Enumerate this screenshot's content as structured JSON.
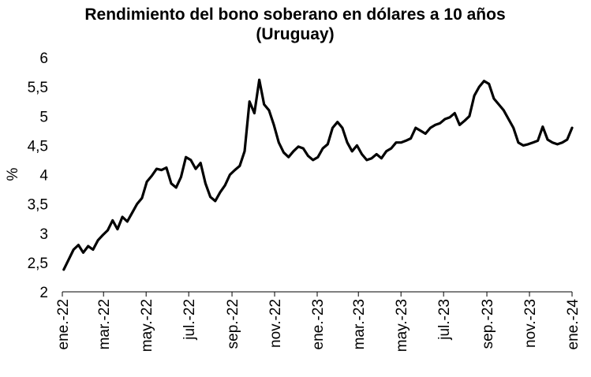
{
  "chart_data": {
    "type": "line",
    "title": "Rendimiento del bono soberano en dólares a 10 años",
    "subtitle": "(Uruguay)",
    "xlabel": "",
    "ylabel": "%",
    "ylim": [
      2,
      6
    ],
    "y_ticks": [
      "2",
      "2,5",
      "3",
      "3,5",
      "4",
      "4,5",
      "5",
      "5,5",
      "6"
    ],
    "y_tick_values": [
      2,
      2.5,
      3,
      3.5,
      4,
      4.5,
      5,
      5.5,
      6
    ],
    "x_range": [
      "2022-01-01",
      "2024-01-01"
    ],
    "x_ticks": [
      {
        "date": "2022-01-01",
        "label": "ene.-22"
      },
      {
        "date": "2022-03-01",
        "label": "mar.-22"
      },
      {
        "date": "2022-05-01",
        "label": "may.-22"
      },
      {
        "date": "2022-07-01",
        "label": "jul.-22"
      },
      {
        "date": "2022-09-01",
        "label": "sep.-22"
      },
      {
        "date": "2022-11-01",
        "label": "nov.-22"
      },
      {
        "date": "2023-01-01",
        "label": "ene.-23"
      },
      {
        "date": "2023-03-01",
        "label": "mar.-23"
      },
      {
        "date": "2023-05-01",
        "label": "may.-23"
      },
      {
        "date": "2023-07-01",
        "label": "jul.-23"
      },
      {
        "date": "2023-09-01",
        "label": "sep.-23"
      },
      {
        "date": "2023-11-01",
        "label": "nov.-23"
      },
      {
        "date": "2024-01-01",
        "label": "ene.-24"
      }
    ],
    "grid": false,
    "legend": "none",
    "line_color": "#000000",
    "series": [
      {
        "x": [
          "2022-01-03",
          "2022-01-10",
          "2022-01-17",
          "2022-01-24",
          "2022-01-31",
          "2022-02-07",
          "2022-02-14",
          "2022-02-21",
          "2022-02-28",
          "2022-03-07",
          "2022-03-14",
          "2022-03-21",
          "2022-03-28",
          "2022-04-04",
          "2022-04-11",
          "2022-04-18",
          "2022-04-25",
          "2022-05-02",
          "2022-05-09",
          "2022-05-16",
          "2022-05-23",
          "2022-05-30",
          "2022-06-06",
          "2022-06-13",
          "2022-06-20",
          "2022-06-27",
          "2022-07-04",
          "2022-07-11",
          "2022-07-18",
          "2022-07-25",
          "2022-08-01",
          "2022-08-08",
          "2022-08-15",
          "2022-08-22",
          "2022-08-29",
          "2022-09-05",
          "2022-09-12",
          "2022-09-19",
          "2022-09-26",
          "2022-10-03",
          "2022-10-10",
          "2022-10-17",
          "2022-10-24",
          "2022-10-31",
          "2022-11-07",
          "2022-11-14",
          "2022-11-21",
          "2022-11-28",
          "2022-12-05",
          "2022-12-12",
          "2022-12-19",
          "2022-12-26",
          "2023-01-02",
          "2023-01-09",
          "2023-01-16",
          "2023-01-23",
          "2023-01-30",
          "2023-02-06",
          "2023-02-13",
          "2023-02-20",
          "2023-02-27",
          "2023-03-06",
          "2023-03-13",
          "2023-03-20",
          "2023-03-27",
          "2023-04-03",
          "2023-04-10",
          "2023-04-17",
          "2023-04-24",
          "2023-05-01",
          "2023-05-08",
          "2023-05-15",
          "2023-05-22",
          "2023-05-29",
          "2023-06-05",
          "2023-06-12",
          "2023-06-19",
          "2023-06-26",
          "2023-07-03",
          "2023-07-10",
          "2023-07-17",
          "2023-07-24",
          "2023-07-31",
          "2023-08-07",
          "2023-08-14",
          "2023-08-21",
          "2023-08-28",
          "2023-09-04",
          "2023-09-11",
          "2023-09-18",
          "2023-09-25",
          "2023-10-02",
          "2023-10-09",
          "2023-10-16",
          "2023-10-23",
          "2023-10-30",
          "2023-11-06",
          "2023-11-13",
          "2023-11-20",
          "2023-11-27",
          "2023-12-04",
          "2023-12-11",
          "2023-12-18",
          "2023-12-25",
          "2024-01-01"
        ],
        "values": [
          2.38,
          2.55,
          2.72,
          2.8,
          2.67,
          2.78,
          2.72,
          2.88,
          2.97,
          3.05,
          3.22,
          3.07,
          3.28,
          3.2,
          3.35,
          3.5,
          3.6,
          3.88,
          3.98,
          4.1,
          4.08,
          4.12,
          3.85,
          3.78,
          3.96,
          4.3,
          4.25,
          4.1,
          4.2,
          3.85,
          3.62,
          3.55,
          3.7,
          3.82,
          4.0,
          4.08,
          4.15,
          4.4,
          5.25,
          5.05,
          5.62,
          5.2,
          5.1,
          4.85,
          4.55,
          4.38,
          4.3,
          4.4,
          4.48,
          4.45,
          4.32,
          4.25,
          4.3,
          4.45,
          4.52,
          4.8,
          4.9,
          4.8,
          4.55,
          4.4,
          4.5,
          4.35,
          4.25,
          4.28,
          4.35,
          4.28,
          4.4,
          4.45,
          4.55,
          4.55,
          4.58,
          4.62,
          4.8,
          4.75,
          4.7,
          4.8,
          4.85,
          4.88,
          4.95,
          4.98,
          5.05,
          4.85,
          4.92,
          5.0,
          5.35,
          5.5,
          5.6,
          5.55,
          5.3,
          5.2,
          5.1,
          4.95,
          4.8,
          4.55,
          4.5,
          4.52,
          4.55,
          4.58,
          4.82,
          4.6,
          4.55,
          4.52,
          4.55,
          4.6,
          4.8
        ]
      }
    ]
  }
}
